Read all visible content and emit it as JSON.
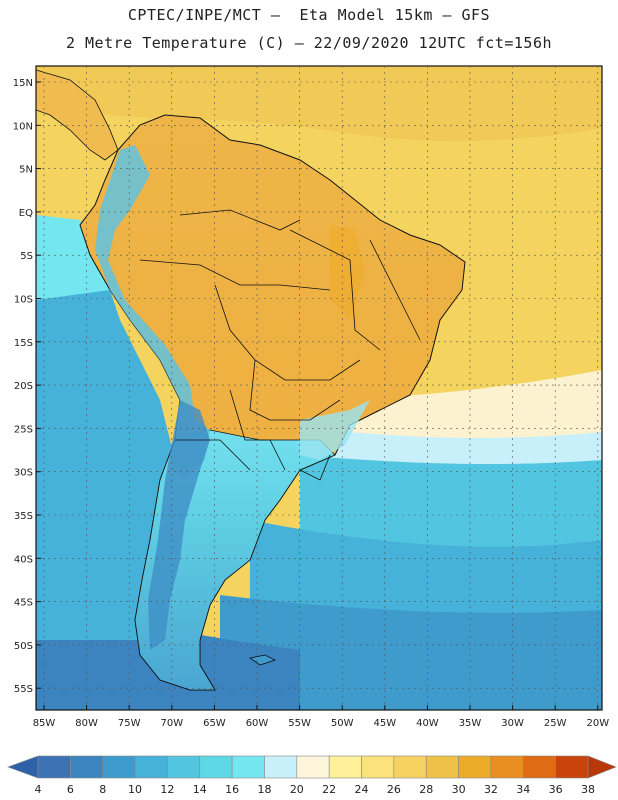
{
  "header": {
    "line1": "CPTEC/INPE/MCT –  Eta Model 15km – GFS",
    "line2": "2 Metre Temperature (C) – 22/09/2020 12UTC fct=156h"
  },
  "map": {
    "lat_labels": [
      "15N",
      "10N",
      "5N",
      "EQ",
      "5S",
      "10S",
      "15S",
      "20S",
      "25S",
      "30S",
      "35S",
      "40S",
      "45S",
      "50S",
      "55S"
    ],
    "lon_labels": [
      "85W",
      "80W",
      "75W",
      "70W",
      "65W",
      "60W",
      "55W",
      "50W",
      "45W",
      "40W",
      "35W",
      "30W",
      "25W",
      "20W"
    ]
  },
  "colorbar": {
    "labels": [
      "4",
      "6",
      "8",
      "10",
      "12",
      "14",
      "16",
      "18",
      "20",
      "22",
      "24",
      "26",
      "28",
      "30",
      "32",
      "34",
      "36",
      "38"
    ],
    "colors": [
      "#3a72b4",
      "#3b84c0",
      "#3f9bcc",
      "#47b2d9",
      "#52c6e0",
      "#5fd8e6",
      "#73e6f0",
      "#c8f0fb",
      "#fdf6dc",
      "#fff09a",
      "#fbe27a",
      "#f6d360",
      "#efc247",
      "#ecac28",
      "#e98f22",
      "#df6b15",
      "#c9440c"
    ],
    "under_color": "#2d63a6",
    "over_color": "#b8380a"
  }
}
